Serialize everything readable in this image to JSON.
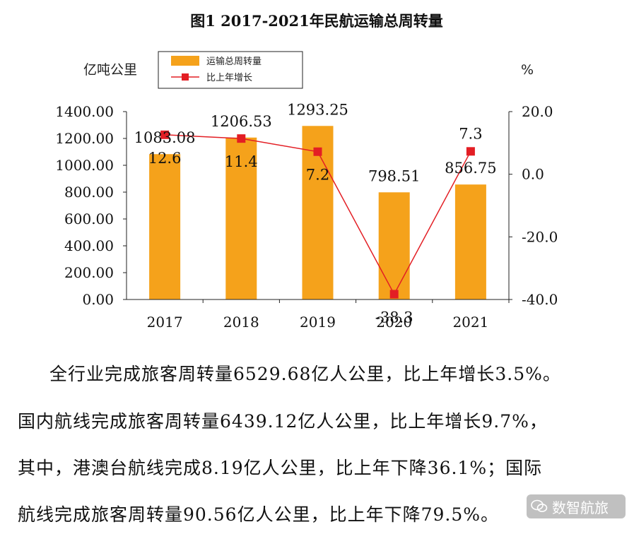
{
  "chart_data": {
    "type": "bar",
    "title": "图1  2017-2021年民航运输总周转量",
    "categories": [
      "2017",
      "2018",
      "2019",
      "2020",
      "2021"
    ],
    "series": [
      {
        "name": "运输总周转量",
        "type": "bar",
        "axis": "left",
        "values": [
          1083.08,
          1206.53,
          1293.25,
          798.51,
          856.75
        ],
        "labels": [
          "1083.08",
          "1206.53",
          "1293.25",
          "798.51",
          "856.75"
        ]
      },
      {
        "name": "比上年增长",
        "type": "line",
        "axis": "right",
        "values": [
          12.6,
          11.4,
          7.2,
          -38.3,
          7.3
        ],
        "labels": [
          "12.6",
          "11.4",
          "7.2",
          "-38.3",
          "7.3"
        ]
      }
    ],
    "ylabel": "亿吨公里",
    "y2label": "%",
    "ylim": [
      0,
      1400
    ],
    "y2lim": [
      -40,
      20
    ],
    "yticks": [
      "0.00",
      "200.00",
      "400.00",
      "600.00",
      "800.00",
      "1000.00",
      "1200.00",
      "1400.00"
    ],
    "y2ticks": [
      "-40.0",
      "-20.0",
      "0.0",
      "20.0"
    ],
    "legend_position": "top-center",
    "grid": false,
    "colors": {
      "bar": "#F5A21B",
      "line": "#E31E24"
    }
  },
  "text": {
    "p1": "全行业完成旅客周转量6529.68亿人公里，比上年增长3.5%。",
    "p2": "国内航线完成旅客周转量6439.12亿人公里，比上年增长9.7%，",
    "p3": "其中，港澳台航线完成8.19亿人公里，比上年下降36.1%；国际",
    "p4": "航线完成旅客周转量90.56亿人公里，比上年下降79.5%。"
  },
  "watermark": {
    "text": "数智航旅",
    "icon": "wechat-icon"
  }
}
